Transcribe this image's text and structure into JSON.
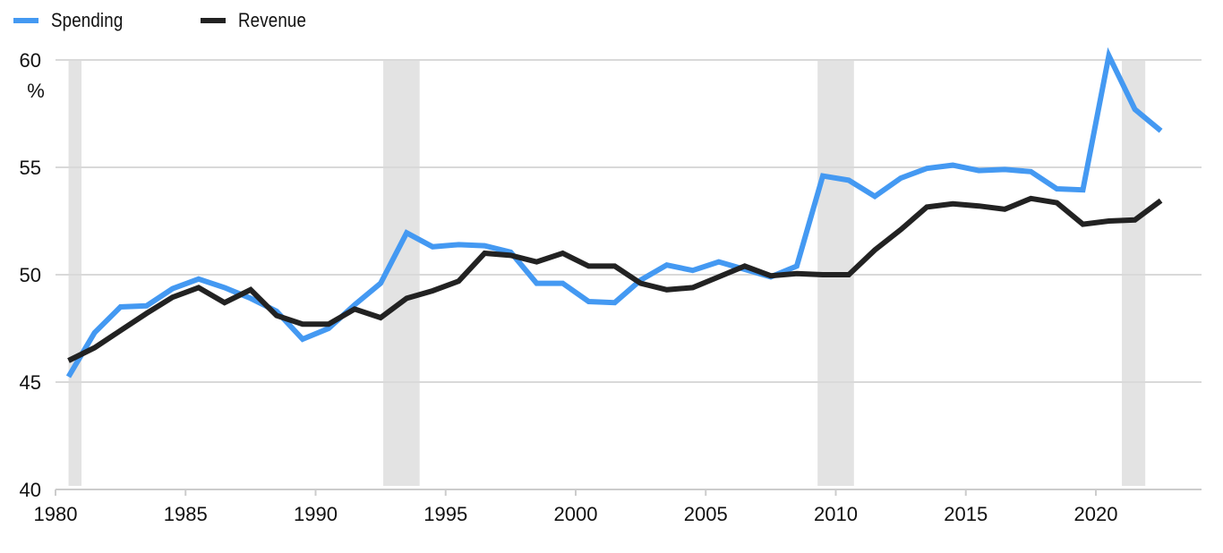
{
  "legend": {
    "items": [
      {
        "label": "Spending",
        "color": "#4499F2"
      },
      {
        "label": "Revenue",
        "color": "#222222"
      }
    ]
  },
  "colors": {
    "spending": "#4499F2",
    "revenue": "#222222",
    "gridline": "#d9d9d9",
    "recession_band": "#e3e3e3",
    "axis": "#cccccc"
  },
  "chart_data": {
    "type": "line",
    "title": "",
    "xlabel": "",
    "ylabel": "%",
    "xlim": [
      1980,
      2024
    ],
    "ylim": [
      40,
      60
    ],
    "grid": true,
    "legend_position": "top-left",
    "x_ticks": [
      1980,
      1985,
      1990,
      1995,
      2000,
      2005,
      2010,
      2015,
      2020
    ],
    "y_ticks": [
      40,
      45,
      50,
      55,
      60
    ],
    "y_unit_label": "%",
    "recession_bands": [
      {
        "start": 1980.5,
        "end": 1981.0
      },
      {
        "start": 1992.6,
        "end": 1994.0
      },
      {
        "start": 2009.3,
        "end": 2010.7
      },
      {
        "start": 2021.0,
        "end": 2021.9
      }
    ],
    "x": [
      1980.5,
      1981.5,
      1982.5,
      1983.5,
      1984.5,
      1985.5,
      1986.5,
      1987.5,
      1988.5,
      1989.5,
      1990.5,
      1991.5,
      1992.5,
      1993.5,
      1994.5,
      1995.5,
      1996.5,
      1997.5,
      1998.5,
      1999.5,
      2000.5,
      2001.5,
      2002.5,
      2003.5,
      2004.5,
      2005.5,
      2006.5,
      2007.5,
      2008.5,
      2009.5,
      2010.5,
      2011.5,
      2012.5,
      2013.5,
      2014.5,
      2015.5,
      2016.5,
      2017.5,
      2018.5,
      2019.5,
      2020.5,
      2021.5,
      2022.5
    ],
    "series": [
      {
        "name": "Spending",
        "color": "#4499F2",
        "values": [
          45.25,
          47.3,
          48.5,
          48.55,
          49.35,
          49.8,
          49.4,
          48.9,
          48.3,
          47.0,
          47.5,
          48.6,
          49.6,
          51.95,
          51.3,
          51.4,
          51.35,
          51.05,
          49.6,
          49.6,
          48.75,
          48.7,
          49.75,
          50.45,
          50.2,
          50.6,
          50.25,
          49.9,
          50.4,
          54.6,
          54.4,
          53.65,
          54.5,
          54.95,
          55.1,
          54.85,
          54.9,
          54.8,
          54.0,
          53.95,
          60.2,
          57.7,
          56.7
        ]
      },
      {
        "name": "Revenue",
        "color": "#222222",
        "values": [
          46.0,
          46.6,
          47.4,
          48.2,
          48.95,
          49.4,
          48.7,
          49.3,
          48.1,
          47.7,
          47.7,
          48.4,
          48.0,
          48.9,
          49.25,
          49.7,
          51.0,
          50.9,
          50.6,
          51.0,
          50.4,
          50.4,
          49.6,
          49.3,
          49.4,
          49.9,
          50.4,
          49.95,
          50.05,
          50.0,
          50.0,
          51.15,
          52.1,
          53.15,
          53.3,
          53.2,
          53.05,
          53.55,
          53.35,
          52.35,
          52.5,
          52.55,
          53.45
        ]
      }
    ]
  }
}
